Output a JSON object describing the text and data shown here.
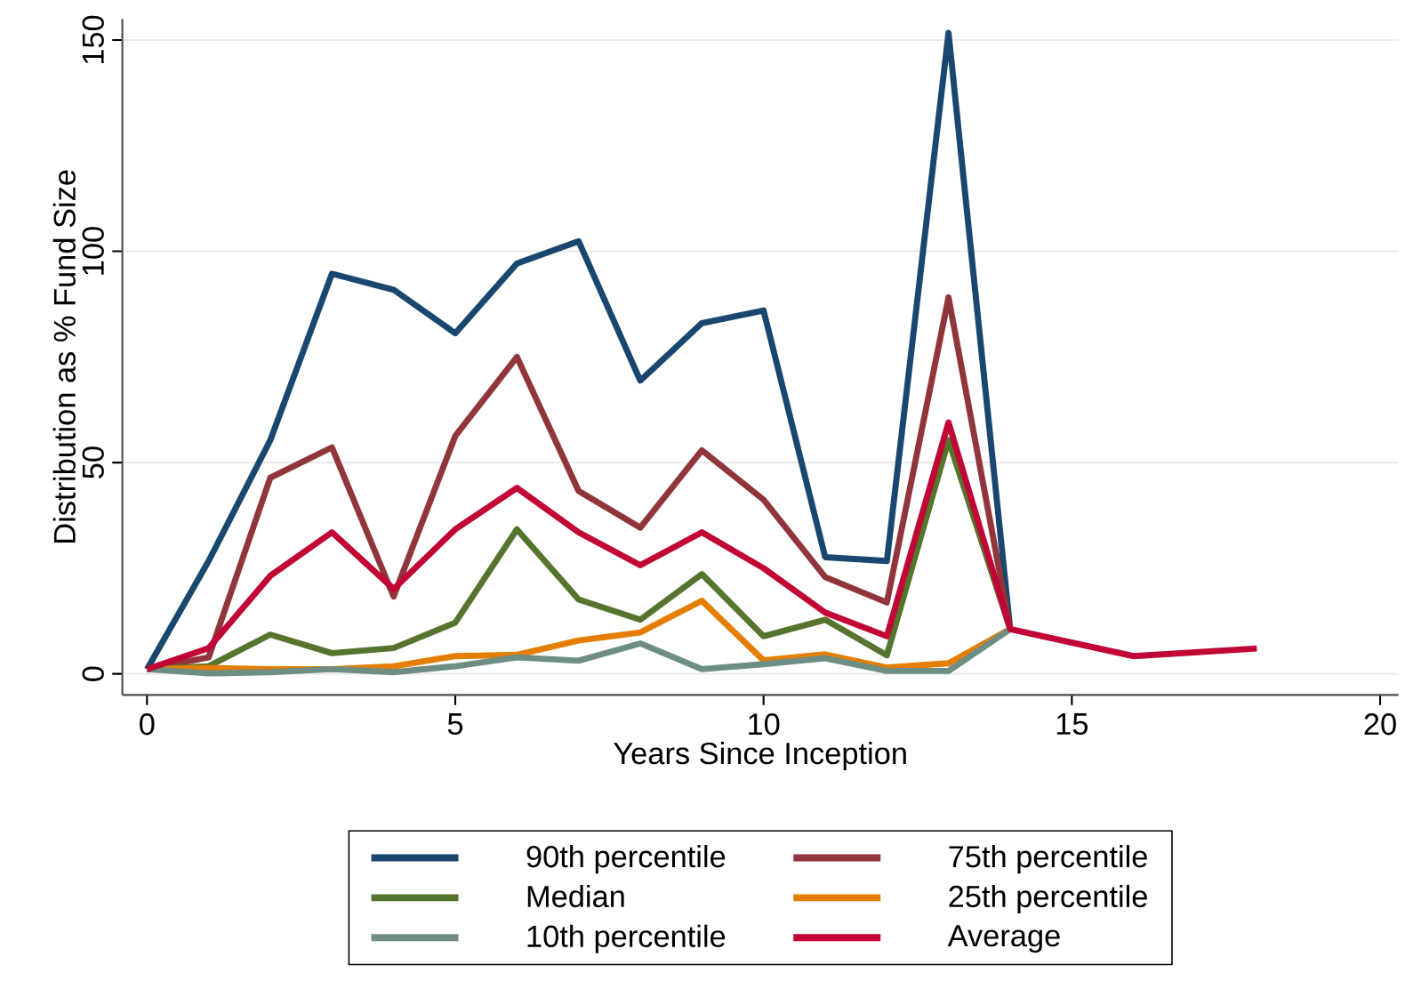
{
  "chart_data": {
    "type": "line",
    "xlabel": "Years Since Inception",
    "ylabel": "Distribution as % Fund Size",
    "x": [
      0,
      1,
      2,
      3,
      4,
      5,
      6,
      7,
      8,
      9,
      10,
      11,
      12,
      13,
      14,
      16,
      18
    ],
    "xlim": [
      -0.4,
      20.3
    ],
    "ylim": [
      -5,
      155
    ],
    "xticks": [
      0,
      5,
      10,
      15,
      20
    ],
    "yticks": [
      0,
      50,
      100,
      150
    ],
    "grid": "y",
    "legend": "bottom",
    "marker": "none",
    "line_style": "solid",
    "series": [
      {
        "name": "90th percentile",
        "color": "#1a476f",
        "values": [
          1.1,
          26.7,
          55.3,
          94.7,
          90.9,
          80.6,
          97.1,
          102.4,
          69.4,
          83.0,
          86.0,
          27.6,
          26.7,
          151.7,
          10.6,
          null,
          null
        ]
      },
      {
        "name": "75th percentile",
        "color": "#90353b",
        "values": [
          1.1,
          3.9,
          46.4,
          53.6,
          18.3,
          56.3,
          75.0,
          43.3,
          34.6,
          52.9,
          41.2,
          22.9,
          16.9,
          89.1,
          10.6,
          null,
          null
        ]
      },
      {
        "name": "Median",
        "color": "#55752f",
        "values": [
          1.1,
          1.8,
          9.3,
          4.9,
          6.1,
          12.1,
          34.2,
          17.6,
          12.8,
          23.6,
          8.9,
          12.8,
          4.4,
          55.3,
          10.6,
          null,
          null
        ]
      },
      {
        "name": "25th percentile",
        "color": "#e37e00",
        "values": [
          1.1,
          1.4,
          1.1,
          1.1,
          1.8,
          4.2,
          4.5,
          7.9,
          9.8,
          17.3,
          3.2,
          4.6,
          1.5,
          2.5,
          10.6,
          null,
          null
        ]
      },
      {
        "name": "10th percentile",
        "color": "#6e8e84",
        "values": [
          1.1,
          0.1,
          0.4,
          1.1,
          0.4,
          1.8,
          3.9,
          3.1,
          7.2,
          1.1,
          2.3,
          3.7,
          0.7,
          0.7,
          10.6,
          null,
          null
        ]
      },
      {
        "name": "Average",
        "color": "#c10534",
        "values": [
          1.1,
          6.1,
          23.2,
          33.5,
          20.1,
          34.2,
          44.0,
          33.5,
          25.7,
          33.5,
          25.0,
          14.5,
          8.9,
          59.5,
          10.6,
          4.2,
          6.0
        ]
      }
    ]
  }
}
